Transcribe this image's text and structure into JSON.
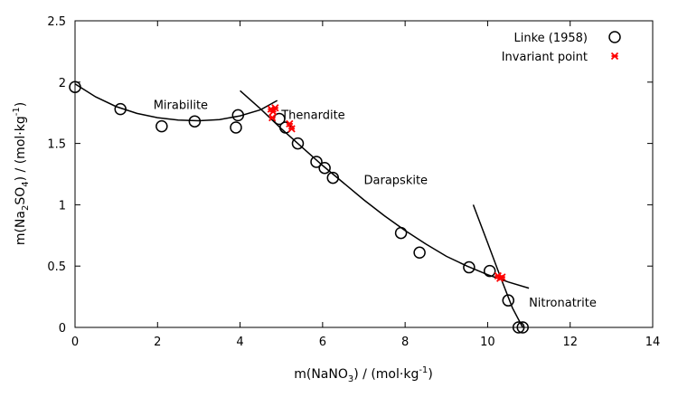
{
  "chart_data": {
    "type": "scatter",
    "title": "",
    "xlabel": {
      "pre": "m(NaNO",
      "sub": "3",
      "post": ") / (mol·kg",
      "sup": "-1",
      "end": ")"
    },
    "ylabel": {
      "a": "m(Na",
      "sub1": "2",
      "b": "SO",
      "sub2": "4",
      "c": ") / (mol·kg",
      "sup": "-1",
      "d": ")"
    },
    "xlim": [
      0,
      14
    ],
    "ylim": [
      0,
      2.5
    ],
    "x_ticks": [
      0,
      2,
      4,
      6,
      8,
      10,
      12,
      14
    ],
    "y_ticks": [
      0,
      0.5,
      1,
      1.5,
      2,
      2.5
    ],
    "x_tick_labels": [
      "0",
      "2",
      "4",
      "6",
      "8",
      "10",
      "12",
      "14"
    ],
    "y_tick_labels": [
      "0",
      "0.5",
      "1",
      "1.5",
      "2",
      "2.5"
    ],
    "grid": false,
    "legend_position": "top-right",
    "series": [
      {
        "name": "Linke (1958)",
        "marker": "open-circle",
        "color": "#000000",
        "x": [
          0.0,
          1.1,
          2.1,
          2.9,
          3.9,
          3.95,
          4.95,
          5.1,
          5.4,
          5.85,
          6.05,
          6.25,
          7.9,
          8.35,
          9.55,
          10.05,
          10.5,
          10.75,
          10.85
        ],
        "y": [
          1.96,
          1.78,
          1.64,
          1.68,
          1.63,
          1.73,
          1.7,
          1.63,
          1.5,
          1.35,
          1.3,
          1.22,
          0.77,
          0.61,
          0.49,
          0.46,
          0.22,
          0.0,
          0.0
        ]
      },
      {
        "name": "Invariant point",
        "marker": "asterisk",
        "color": "#ff0000",
        "x": [
          4.75,
          4.8,
          4.85,
          4.78,
          5.2,
          5.25,
          10.25,
          10.35,
          10.3
        ],
        "y": [
          1.78,
          1.76,
          1.79,
          1.71,
          1.66,
          1.62,
          0.42,
          0.41,
          0.4
        ]
      }
    ],
    "curves": [
      {
        "label": "Mirabilite",
        "x": [
          0.0,
          0.5,
          1.0,
          1.5,
          2.0,
          2.5,
          3.0,
          3.5,
          4.0,
          4.5,
          4.9
        ],
        "y": [
          1.985,
          1.88,
          1.8,
          1.745,
          1.71,
          1.69,
          1.685,
          1.695,
          1.725,
          1.775,
          1.85
        ]
      },
      {
        "label": "Thenardite",
        "x": [
          4.0,
          4.5,
          5.0,
          5.5,
          6.0,
          6.5,
          7.0,
          7.5,
          8.0,
          8.5,
          9.0,
          9.5,
          10.0,
          10.5,
          11.0
        ],
        "y": [
          1.93,
          1.78,
          1.62,
          1.47,
          1.32,
          1.18,
          1.04,
          0.91,
          0.79,
          0.68,
          0.58,
          0.5,
          0.43,
          0.37,
          0.32
        ]
      },
      {
        "label": "Nitronatrite",
        "x": [
          9.65,
          10.0,
          10.3,
          10.6,
          10.85
        ],
        "y": [
          1.0,
          0.69,
          0.42,
          0.16,
          0.0
        ]
      }
    ],
    "annotations": [
      {
        "text": "Mirabilite",
        "x": 1.9,
        "y": 1.78
      },
      {
        "text": "Thenardite",
        "x": 5.0,
        "y": 1.7
      },
      {
        "text": "Darapskite",
        "x": 7.0,
        "y": 1.17
      },
      {
        "text": "Nitronatrite",
        "x": 11.0,
        "y": 0.17
      }
    ]
  }
}
